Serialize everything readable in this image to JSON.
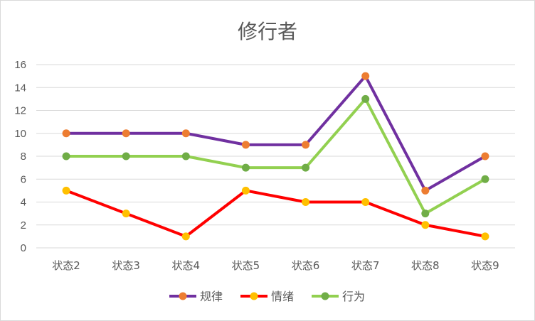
{
  "chart_data": {
    "type": "line",
    "title": "修行者",
    "categories": [
      "状态2",
      "状态3",
      "状态4",
      "状态5",
      "状态6",
      "状态7",
      "状态8",
      "状态9"
    ],
    "ylim": [
      0,
      16
    ],
    "yticks": [
      0,
      2,
      4,
      6,
      8,
      10,
      12,
      14,
      16
    ],
    "grid": true,
    "legend_position": "bottom",
    "series": [
      {
        "name": "规律",
        "line_color": "#7030a0",
        "marker_color": "#ed7d31",
        "values": [
          10,
          10,
          10,
          9,
          9,
          15,
          5,
          8
        ]
      },
      {
        "name": "情绪",
        "line_color": "#ff0000",
        "marker_color": "#ffc000",
        "values": [
          5,
          3,
          1,
          5,
          4,
          4,
          2,
          1
        ]
      },
      {
        "name": "行为",
        "line_color": "#92d050",
        "marker_color": "#70ad47",
        "values": [
          8,
          8,
          8,
          7,
          7,
          13,
          3,
          6
        ]
      }
    ]
  }
}
